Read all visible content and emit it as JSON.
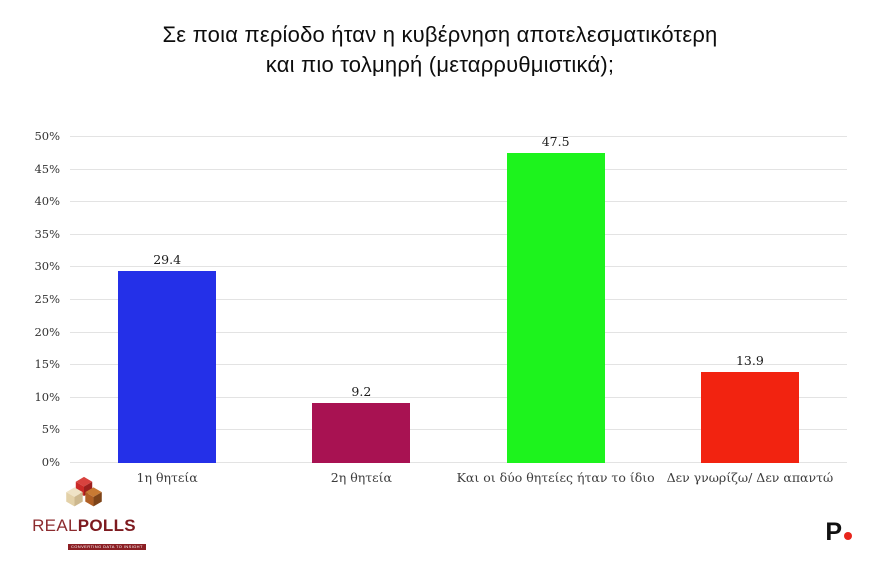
{
  "title": {
    "line1": "Σε ποια περίοδο ήταν η κυβέρνηση αποτελεσματικότερη",
    "line2": "και πιο τολμηρή (μεταρρυθμιστικά);"
  },
  "chart_data": {
    "type": "bar",
    "title": "Σε ποια περίοδο ήταν η κυβέρνηση αποτελεσματικότερη και πιο τολμηρή (μεταρρυθμιστικά);",
    "categories": [
      "1η θητεία",
      "2η θητεία",
      "Και οι δύο θητείες ήταν το ίδιο",
      "Δεν γνωρίζω/ Δεν απαντώ"
    ],
    "values": [
      29.4,
      9.2,
      47.5,
      13.9
    ],
    "value_labels": [
      "29.4",
      "9.2",
      "47.5",
      "13.9"
    ],
    "bar_colors": [
      "#2430e8",
      "#a81252",
      "#1df31d",
      "#f22310"
    ],
    "xlabel": "",
    "ylabel": "",
    "ylim": [
      0,
      50
    ],
    "yticks": [
      0,
      5,
      10,
      15,
      20,
      25,
      30,
      35,
      40,
      45,
      50
    ],
    "ytick_suffix": "%",
    "grid": true,
    "legend": false
  },
  "footer": {
    "realpolls": {
      "name_part1": "REAL",
      "name_part2": "POLLS",
      "tagline": "CONVERTING DATA TO INSIGHT",
      "colors": {
        "red_top": "#d8423e",
        "red_left": "#cb2a27",
        "red_right": "#9c1f1d",
        "cream_top": "#efe3c6",
        "cream_left": "#e3d1a8",
        "cream_right": "#cdb88e",
        "brown_top": "#c87a33",
        "brown_left": "#b05f24",
        "brown_right": "#7e4418"
      }
    },
    "brand_p": {
      "text": "P",
      "text_color": "#111111",
      "dot_color": "#e8251c"
    }
  }
}
